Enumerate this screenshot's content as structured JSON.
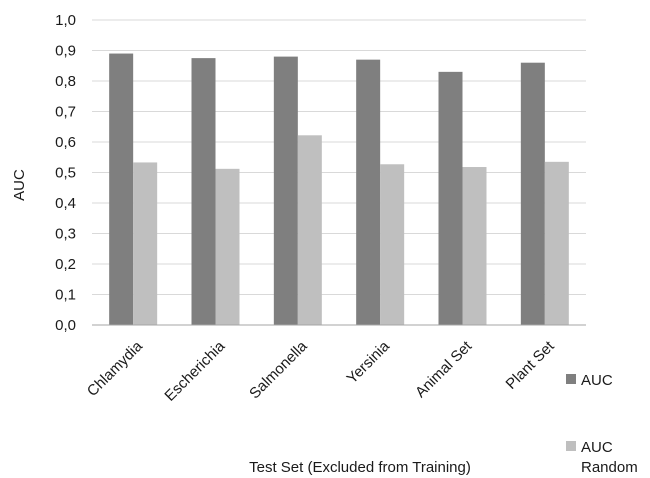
{
  "chart_data": {
    "type": "bar",
    "categories": [
      "Chlamydia",
      "Escherichia",
      "Salmonella",
      "Yersinia",
      "Animal Set",
      "Plant Set"
    ],
    "series": [
      {
        "name": "AUC",
        "color": "#7f7f7f",
        "values": [
          0.89,
          0.875,
          0.88,
          0.87,
          0.83,
          0.86
        ]
      },
      {
        "name": "AUC Random",
        "color": "#bfbfbf",
        "values": [
          0.533,
          0.512,
          0.622,
          0.527,
          0.518,
          0.535
        ]
      }
    ],
    "title": "",
    "xlabel": "Test Set (Excluded from Training)",
    "ylabel": "AUC",
    "ylim": [
      0,
      1
    ],
    "yticks": [
      "0,0",
      "0,1",
      "0,2",
      "0,3",
      "0,4",
      "0,5",
      "0,6",
      "0,7",
      "0,8",
      "0,9",
      "1,0"
    ],
    "grid": true,
    "legend_position": "bottom-right",
    "legend": [
      {
        "lines": [
          "AUC"
        ]
      },
      {
        "lines": [
          "AUC",
          "Random"
        ]
      }
    ]
  }
}
